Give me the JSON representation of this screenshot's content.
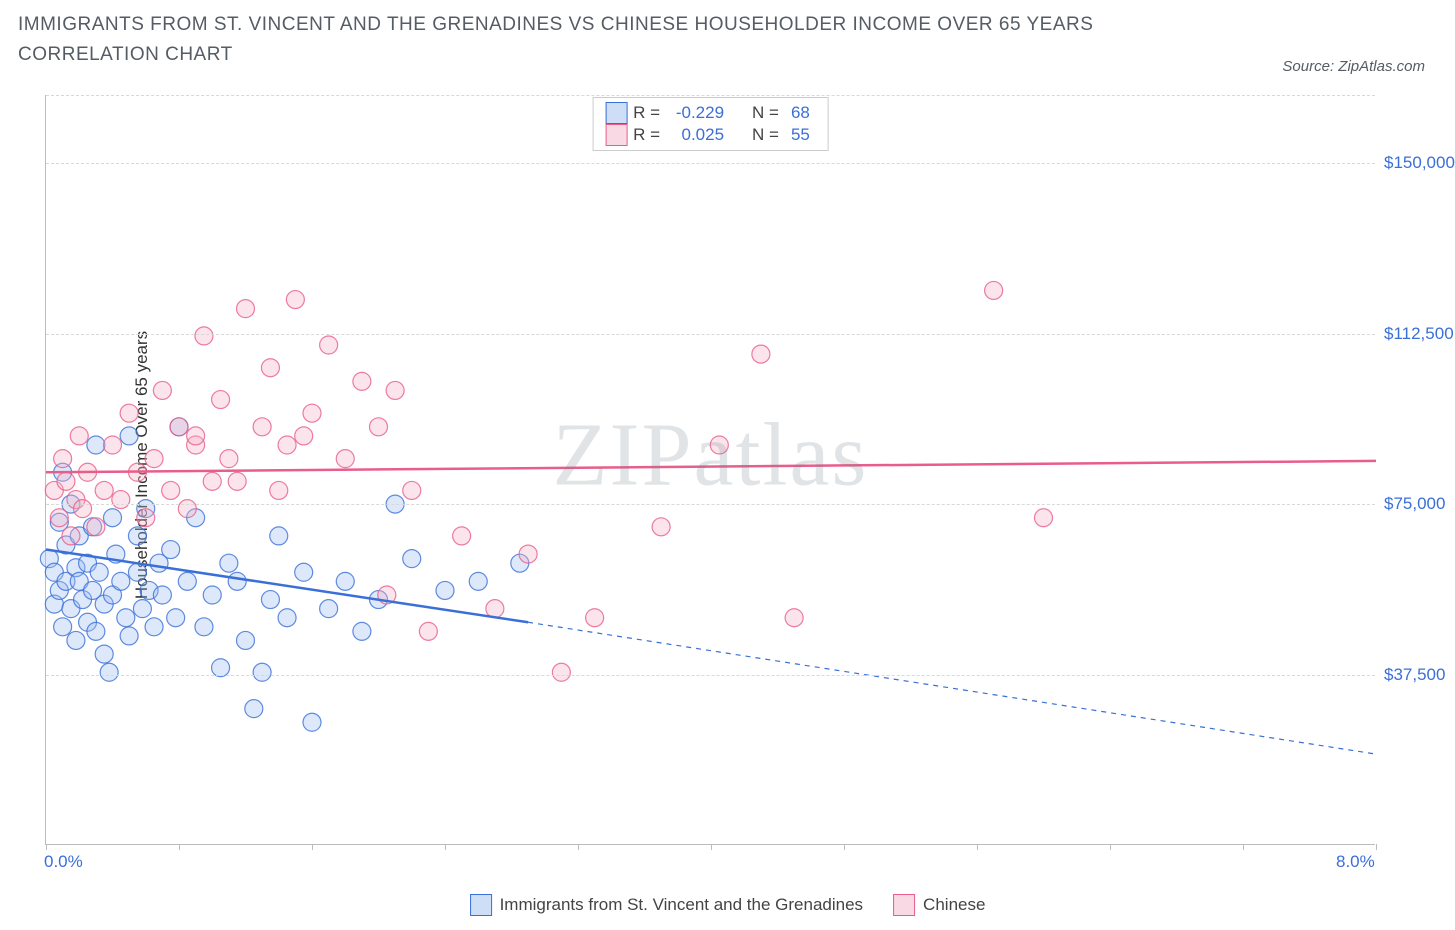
{
  "title": "IMMIGRANTS FROM ST. VINCENT AND THE GRENADINES VS CHINESE HOUSEHOLDER INCOME OVER 65 YEARS CORRELATION CHART",
  "source_label": "Source:",
  "source_name": "ZipAtlas.com",
  "watermark": "ZIPatlas",
  "chart": {
    "type": "scatter",
    "background_color": "#ffffff",
    "grid_color": "#d8d8d8",
    "axis_color": "#bcbcbc",
    "tick_label_color": "#3a6fd8",
    "axis_label_color": "#333333",
    "title_color": "#555c64",
    "title_fontsize": 19,
    "label_fontsize": 17,
    "tick_fontsize": 17,
    "ylabel": "Householder Income Over 65 years",
    "xlim": [
      0.0,
      8.0
    ],
    "ylim": [
      0,
      165000
    ],
    "yticks": [
      37500,
      75000,
      112500,
      150000
    ],
    "ytick_labels": [
      "$37,500",
      "$75,000",
      "$112,500",
      "$150,000"
    ],
    "xtick_positions": [
      0.0,
      0.8,
      1.6,
      2.4,
      3.2,
      4.0,
      4.8,
      5.6,
      6.4,
      7.2,
      8.0
    ],
    "xtick_labels_shown": {
      "0.0": "0.0%",
      "8.0": "8.0%"
    },
    "marker_radius": 9,
    "marker_fill_opacity": 0.35,
    "marker_stroke_width": 1.2,
    "line_width_solid": 2.5,
    "line_width_dashed": 1.2,
    "dash_pattern": "5,5",
    "series": [
      {
        "key": "svg",
        "label": "Immigrants from St. Vincent and the Grenadines",
        "color_stroke": "#3a6fd8",
        "color_fill": "#9dbef0",
        "R": "-0.229",
        "N": "68",
        "trend": {
          "x1": 0.0,
          "y1": 65000,
          "x2": 2.9,
          "y2": 49000,
          "x2_ext": 8.0,
          "y2_ext": 20000
        },
        "points": [
          [
            0.02,
            63000
          ],
          [
            0.05,
            60000
          ],
          [
            0.05,
            53000
          ],
          [
            0.08,
            71000
          ],
          [
            0.08,
            56000
          ],
          [
            0.1,
            48000
          ],
          [
            0.1,
            82000
          ],
          [
            0.12,
            66000
          ],
          [
            0.12,
            58000
          ],
          [
            0.15,
            52000
          ],
          [
            0.15,
            75000
          ],
          [
            0.18,
            61000
          ],
          [
            0.18,
            45000
          ],
          [
            0.2,
            68000
          ],
          [
            0.2,
            58000
          ],
          [
            0.22,
            54000
          ],
          [
            0.25,
            49000
          ],
          [
            0.25,
            62000
          ],
          [
            0.28,
            70000
          ],
          [
            0.28,
            56000
          ],
          [
            0.3,
            47000
          ],
          [
            0.3,
            88000
          ],
          [
            0.32,
            60000
          ],
          [
            0.35,
            53000
          ],
          [
            0.35,
            42000
          ],
          [
            0.38,
            38000
          ],
          [
            0.4,
            72000
          ],
          [
            0.4,
            55000
          ],
          [
            0.42,
            64000
          ],
          [
            0.45,
            58000
          ],
          [
            0.48,
            50000
          ],
          [
            0.5,
            46000
          ],
          [
            0.5,
            90000
          ],
          [
            0.55,
            60000
          ],
          [
            0.55,
            68000
          ],
          [
            0.58,
            52000
          ],
          [
            0.6,
            74000
          ],
          [
            0.62,
            56000
          ],
          [
            0.65,
            48000
          ],
          [
            0.68,
            62000
          ],
          [
            0.7,
            55000
          ],
          [
            0.75,
            65000
          ],
          [
            0.78,
            50000
          ],
          [
            0.8,
            92000
          ],
          [
            0.85,
            58000
          ],
          [
            0.9,
            72000
          ],
          [
            0.95,
            48000
          ],
          [
            1.0,
            55000
          ],
          [
            1.05,
            39000
          ],
          [
            1.1,
            62000
          ],
          [
            1.15,
            58000
          ],
          [
            1.2,
            45000
          ],
          [
            1.25,
            30000
          ],
          [
            1.3,
            38000
          ],
          [
            1.35,
            54000
          ],
          [
            1.4,
            68000
          ],
          [
            1.45,
            50000
          ],
          [
            1.55,
            60000
          ],
          [
            1.6,
            27000
          ],
          [
            1.7,
            52000
          ],
          [
            1.8,
            58000
          ],
          [
            1.9,
            47000
          ],
          [
            2.0,
            54000
          ],
          [
            2.1,
            75000
          ],
          [
            2.2,
            63000
          ],
          [
            2.4,
            56000
          ],
          [
            2.6,
            58000
          ],
          [
            2.85,
            62000
          ]
        ]
      },
      {
        "key": "chi",
        "label": "Chinese",
        "color_stroke": "#e85d8a",
        "color_fill": "#f4b3c7",
        "R": "0.025",
        "N": "55",
        "trend": {
          "x1": 0.0,
          "y1": 82000,
          "x2": 8.0,
          "y2": 84500
        },
        "points": [
          [
            0.05,
            78000
          ],
          [
            0.08,
            72000
          ],
          [
            0.1,
            85000
          ],
          [
            0.12,
            80000
          ],
          [
            0.15,
            68000
          ],
          [
            0.18,
            76000
          ],
          [
            0.2,
            90000
          ],
          [
            0.22,
            74000
          ],
          [
            0.25,
            82000
          ],
          [
            0.3,
            70000
          ],
          [
            0.35,
            78000
          ],
          [
            0.4,
            88000
          ],
          [
            0.45,
            76000
          ],
          [
            0.5,
            95000
          ],
          [
            0.55,
            82000
          ],
          [
            0.6,
            72000
          ],
          [
            0.65,
            85000
          ],
          [
            0.7,
            100000
          ],
          [
            0.75,
            78000
          ],
          [
            0.8,
            92000
          ],
          [
            0.85,
            74000
          ],
          [
            0.9,
            88000
          ],
          [
            0.95,
            112000
          ],
          [
            1.0,
            80000
          ],
          [
            1.05,
            98000
          ],
          [
            1.1,
            85000
          ],
          [
            1.2,
            118000
          ],
          [
            1.3,
            92000
          ],
          [
            1.35,
            105000
          ],
          [
            1.4,
            78000
          ],
          [
            1.5,
            120000
          ],
          [
            1.55,
            90000
          ],
          [
            1.6,
            95000
          ],
          [
            1.7,
            110000
          ],
          [
            1.8,
            85000
          ],
          [
            1.9,
            102000
          ],
          [
            2.0,
            92000
          ],
          [
            2.05,
            55000
          ],
          [
            2.1,
            100000
          ],
          [
            2.2,
            78000
          ],
          [
            2.3,
            47000
          ],
          [
            2.5,
            68000
          ],
          [
            2.7,
            52000
          ],
          [
            2.9,
            64000
          ],
          [
            3.1,
            38000
          ],
          [
            3.3,
            50000
          ],
          [
            3.7,
            70000
          ],
          [
            4.05,
            88000
          ],
          [
            4.3,
            108000
          ],
          [
            4.5,
            50000
          ],
          [
            5.7,
            122000
          ],
          [
            6.0,
            72000
          ],
          [
            0.9,
            90000
          ],
          [
            1.15,
            80000
          ],
          [
            1.45,
            88000
          ]
        ]
      }
    ],
    "stats_legend_labels": {
      "R": "R =",
      "N": "N ="
    },
    "bottom_legend_order": [
      "svg",
      "chi"
    ]
  }
}
